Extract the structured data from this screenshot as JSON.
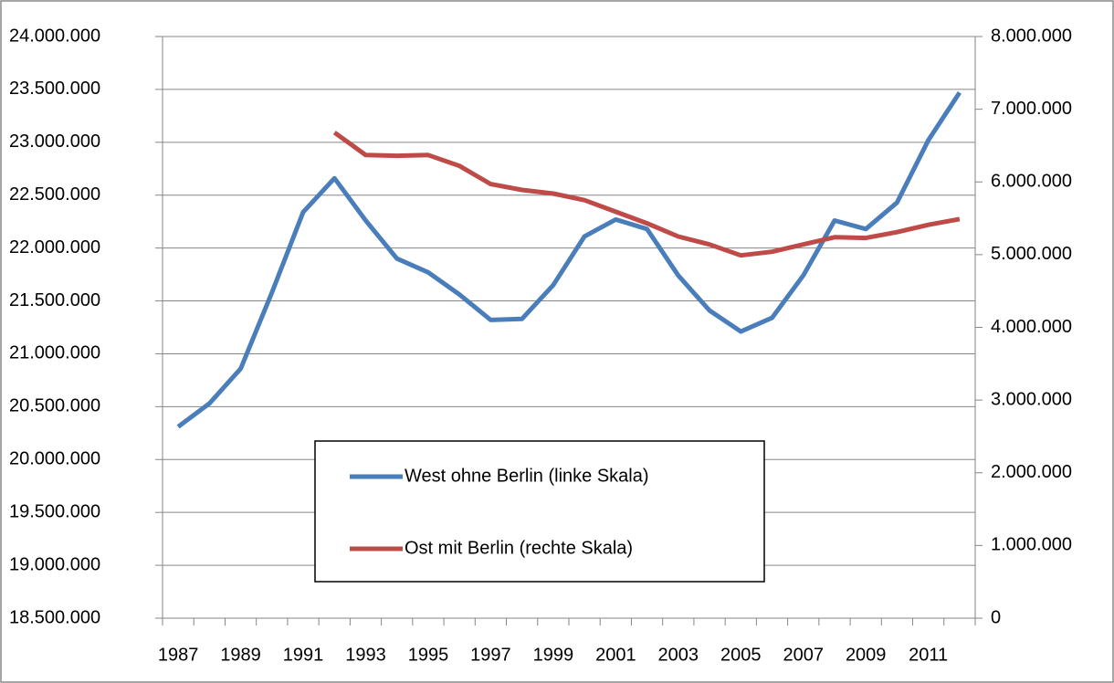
{
  "chart_data": {
    "type": "line",
    "categories": [
      "1987",
      null,
      "1989",
      null,
      "1991",
      null,
      "1993",
      null,
      "1995",
      null,
      "1997",
      null,
      "1999",
      null,
      "2001",
      null,
      "2003",
      null,
      "2005",
      null,
      "2007",
      null,
      "2009",
      null,
      "2011",
      null
    ],
    "series": [
      {
        "name": "West ohne Berlin (linke Skala)",
        "color": "#4a7ebb",
        "axis": "y",
        "values": [
          20310000,
          20530000,
          20860000,
          21580000,
          22340000,
          22660000,
          22260000,
          21900000,
          21770000,
          21560000,
          21320000,
          21330000,
          21650000,
          22110000,
          22270000,
          22180000,
          21740000,
          21410000,
          21210000,
          21340000,
          21740000,
          22260000,
          22180000,
          22430000,
          23020000,
          23470000
        ]
      },
      {
        "name": "Ost mit Berlin (rechte Skala)",
        "color": "#be4b48",
        "axis": "y2",
        "values": [
          null,
          null,
          null,
          null,
          null,
          6680000,
          6370000,
          6360000,
          6370000,
          6220000,
          5970000,
          5890000,
          5840000,
          5750000,
          5590000,
          5430000,
          5250000,
          5140000,
          4990000,
          5040000,
          5140000,
          5240000,
          5230000,
          5310000,
          5410000,
          5490000
        ]
      }
    ],
    "ylim": [
      18500000,
      24000000
    ],
    "yticks": [
      {
        "value": 18500000,
        "label": "18.500.000"
      },
      {
        "value": 19000000,
        "label": "19.000.000"
      },
      {
        "value": 19500000,
        "label": "19.500.000"
      },
      {
        "value": 20000000,
        "label": "20.000.000"
      },
      {
        "value": 20500000,
        "label": "20.500.000"
      },
      {
        "value": 21000000,
        "label": "21.000.000"
      },
      {
        "value": 21500000,
        "label": "21.500.000"
      },
      {
        "value": 22000000,
        "label": "22.000.000"
      },
      {
        "value": 22500000,
        "label": "22.500.000"
      },
      {
        "value": 23000000,
        "label": "23.000.000"
      },
      {
        "value": 23500000,
        "label": "23.500.000"
      },
      {
        "value": 24000000,
        "label": "24.000.000"
      }
    ],
    "y2lim": [
      0,
      8000000
    ],
    "y2ticks": [
      0,
      {
        "value": 1000000,
        "label": "1.000.000"
      },
      {
        "value": 2000000,
        "label": "2.000.000"
      },
      {
        "value": 3000000,
        "label": "3.000.000"
      },
      {
        "value": 4000000,
        "label": "4.000.000"
      },
      {
        "value": 5000000,
        "label": "5.000.000"
      },
      {
        "value": 6000000,
        "label": "6.000.000"
      },
      {
        "value": 7000000,
        "label": "7.000.000"
      },
      {
        "value": 8000000,
        "label": "8.000.000"
      }
    ],
    "grid": true
  }
}
